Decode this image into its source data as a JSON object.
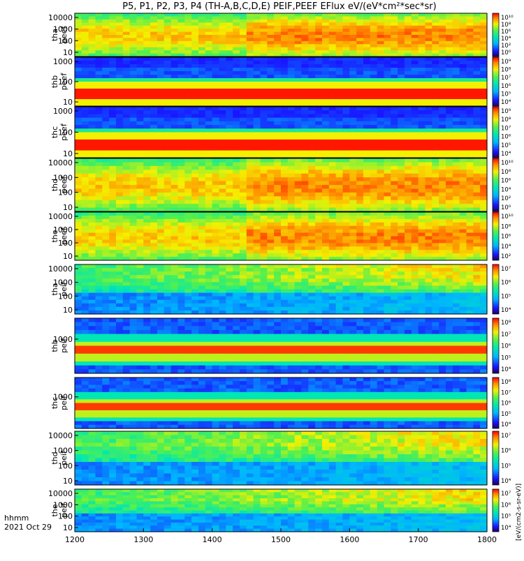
{
  "title": "P5, P1, P2, P3, P4 (TH-A,B,C,D,E) PEIF,PEEF EFlux eV/(eV*cm²*sec*sr)",
  "time_axis": {
    "label": "hhmm",
    "date": "2021 Oct 29"
  },
  "colorbar_unit": "[eV/(cm2-s-sr-eV)]",
  "chart_data": {
    "type": "heatmap",
    "x_range": [
      1200,
      1800
    ],
    "x_ticks": [
      "1200",
      "1300",
      "1400",
      "1500",
      "1600",
      "1700",
      "1800"
    ],
    "panels": [
      {
        "name": "tha peef",
        "probe": "tha",
        "product": "peef",
        "y_ticks": [
          "10",
          "100",
          "1000",
          "10000"
        ],
        "scale": "log",
        "cbar_ticks": [
          "10¹⁰",
          "10⁸",
          "10⁶",
          "10⁴",
          "10²",
          "10⁰"
        ],
        "pattern": "e"
      },
      {
        "name": "thb peef",
        "probe": "thb",
        "product": "peef",
        "y_ticks": [
          "10",
          "100",
          "1000"
        ],
        "scale": "log",
        "cbar_ticks": [
          "10⁹",
          "10⁸",
          "10⁷",
          "10⁶",
          "10⁵",
          "10⁴"
        ],
        "pattern": "band"
      },
      {
        "name": "thc peef",
        "probe": "thc",
        "product": "peef",
        "y_ticks": [
          "10",
          "100",
          "1000"
        ],
        "scale": "log",
        "cbar_ticks": [
          "10⁹",
          "10⁸",
          "10⁷",
          "10⁶",
          "10⁵",
          "10⁴"
        ],
        "pattern": "band"
      },
      {
        "name": "thd peef",
        "probe": "thd",
        "product": "peef",
        "y_ticks": [
          "10",
          "100",
          "1000",
          "10000"
        ],
        "scale": "log",
        "cbar_ticks": [
          "10¹⁰",
          "10⁸",
          "10⁶",
          "10⁴",
          "10²",
          "10⁰"
        ],
        "pattern": "e"
      },
      {
        "name": "the peef",
        "probe": "the",
        "product": "peef",
        "y_ticks": [
          "10",
          "100",
          "1000",
          "10000"
        ],
        "scale": "log",
        "cbar_ticks": [
          "10¹⁰",
          "10⁸",
          "10⁶",
          "10⁴",
          "10²"
        ],
        "pattern": "e"
      },
      {
        "name": "tha peif",
        "probe": "tha",
        "product": "peif",
        "y_ticks": [
          "10",
          "100",
          "1000",
          "10000"
        ],
        "scale": "log",
        "cbar_ticks": [
          "10⁷",
          "10⁶",
          "10⁵",
          "10⁴"
        ],
        "pattern": "i"
      },
      {
        "name": "thb peif",
        "probe": "thb",
        "product": "peif",
        "y_ticks": [
          "1000"
        ],
        "scale": "log",
        "cbar_ticks": [
          "10⁸",
          "10⁷",
          "10⁶",
          "10⁵",
          "10⁴"
        ],
        "pattern": "iband"
      },
      {
        "name": "thc peif",
        "probe": "thc",
        "product": "peif",
        "y_ticks": [
          "1000"
        ],
        "scale": "log",
        "cbar_ticks": [
          "10⁸",
          "10⁷",
          "10⁶",
          "10⁵",
          "10⁴"
        ],
        "pattern": "iband"
      },
      {
        "name": "thd peif",
        "probe": "thd",
        "product": "peif",
        "y_ticks": [
          "10",
          "100",
          "1000",
          "10000"
        ],
        "scale": "log",
        "cbar_ticks": [
          "10⁷",
          "10⁶",
          "10⁵",
          "10⁴"
        ],
        "pattern": "i"
      },
      {
        "name": "the peif",
        "probe": "the",
        "product": "peif",
        "y_ticks": [
          "10",
          "100",
          "1000",
          "10000"
        ],
        "scale": "log",
        "cbar_ticks": [
          "10⁷",
          "10⁶",
          "10⁵",
          "10⁴"
        ],
        "pattern": "i"
      }
    ],
    "colormap": "rainbow"
  }
}
